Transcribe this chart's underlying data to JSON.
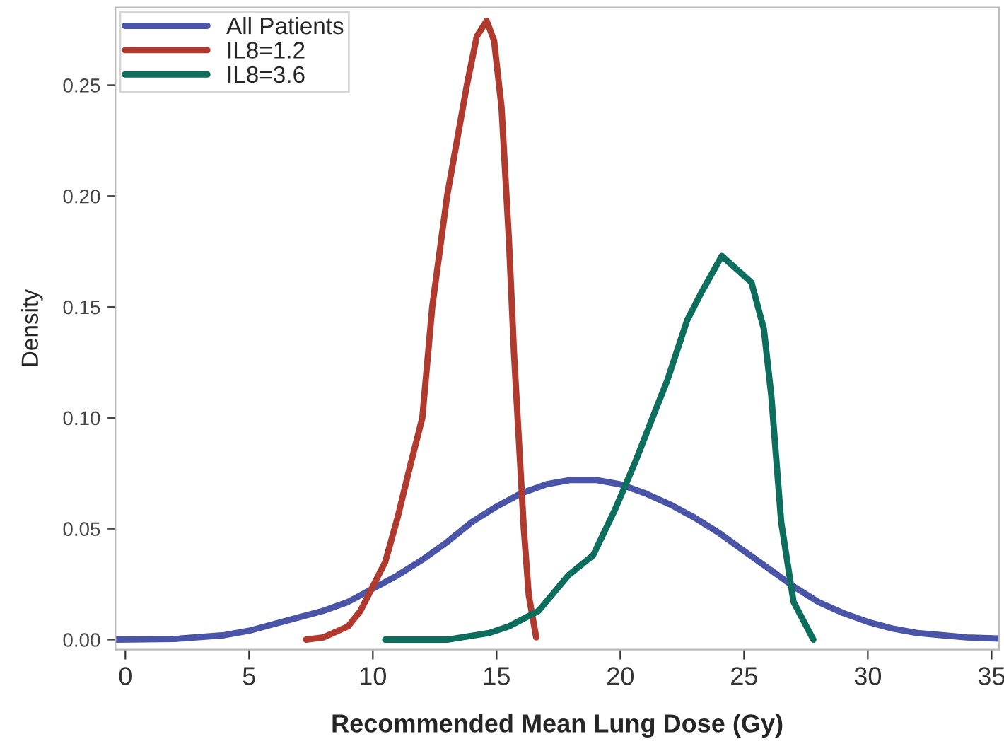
{
  "chart_data": {
    "type": "line",
    "xlabel": "Recommended Mean Lung Dose (Gy)",
    "ylabel": "Density",
    "xlim": [
      -0.4,
      35.3
    ],
    "ylim": [
      -0.0045,
      0.285
    ],
    "xticks": [
      0,
      5,
      10,
      15,
      20,
      25,
      30,
      35
    ],
    "yticks": [
      {
        "value": 0,
        "label": "0.00"
      },
      {
        "value": 0.05,
        "label": "0.05"
      },
      {
        "value": 0.1,
        "label": "0.10"
      },
      {
        "value": 0.15,
        "label": "0.15"
      },
      {
        "value": 0.2,
        "label": "0.20"
      },
      {
        "value": 0.25,
        "label": "0.25"
      }
    ],
    "grid": false,
    "legend": "top left",
    "line_style": "solid",
    "marker": "none",
    "series": [
      {
        "name": "All Patients",
        "color": "#4a55a8",
        "x": [
          -0.4,
          2,
          4,
          5,
          6,
          7,
          8,
          9,
          10,
          11,
          12,
          13,
          14,
          15,
          16,
          17,
          18,
          19,
          20,
          21,
          22,
          23,
          24,
          25,
          26,
          27,
          28,
          29,
          30,
          31,
          32,
          33,
          34,
          35.3
        ],
        "values": [
          0,
          0.0003,
          0.002,
          0.004,
          0.007,
          0.01,
          0.013,
          0.017,
          0.023,
          0.029,
          0.036,
          0.044,
          0.053,
          0.06,
          0.066,
          0.07,
          0.072,
          0.072,
          0.07,
          0.066,
          0.061,
          0.055,
          0.048,
          0.04,
          0.032,
          0.024,
          0.017,
          0.012,
          0.008,
          0.005,
          0.003,
          0.002,
          0.001,
          0.0005
        ]
      },
      {
        "name": "IL8=1.2",
        "color": "#b03a2e",
        "x": [
          7.3,
          8,
          9,
          9.5,
          10,
          10.5,
          11,
          11.5,
          12,
          12.4,
          13,
          13.8,
          14.2,
          14.6,
          14.9,
          15.2,
          15.5,
          15.7,
          15.9,
          16.1,
          16.3,
          16.6
        ],
        "values": [
          0,
          0.001,
          0.006,
          0.013,
          0.024,
          0.035,
          0.055,
          0.078,
          0.1,
          0.15,
          0.2,
          0.25,
          0.272,
          0.279,
          0.27,
          0.24,
          0.18,
          0.13,
          0.09,
          0.05,
          0.02,
          0.001
        ]
      },
      {
        "name": "IL8=3.6",
        "color": "#0e6e5e",
        "x": [
          10.5,
          13,
          14.7,
          15.5,
          16.7,
          17.9,
          18.9,
          19.8,
          20.6,
          21.3,
          21.9,
          22.7,
          23.3,
          24.1,
          25.3,
          25.8,
          26.1,
          26.5,
          27.0,
          27.8
        ],
        "values": [
          0,
          0,
          0.003,
          0.006,
          0.013,
          0.029,
          0.038,
          0.059,
          0.08,
          0.1,
          0.117,
          0.144,
          0.157,
          0.173,
          0.161,
          0.14,
          0.11,
          0.053,
          0.017,
          0
        ]
      }
    ]
  }
}
